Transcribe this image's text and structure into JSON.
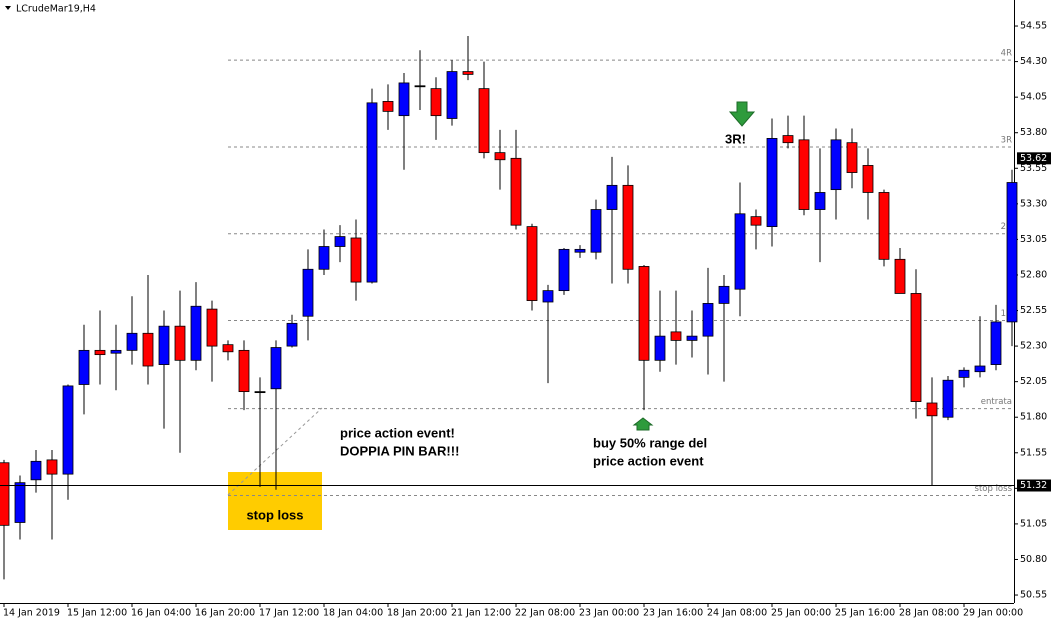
{
  "chart_data": {
    "type": "candlestick",
    "title": "LCrudeMar19,H4",
    "categories": [
      "14 Jan 2019",
      null,
      null,
      null,
      "15 Jan 12:00",
      null,
      null,
      null,
      "16 Jan 04:00",
      null,
      null,
      null,
      "16 Jan 20:00",
      null,
      null,
      null,
      "17 Jan 12:00",
      null,
      null,
      null,
      "18 Jan 04:00",
      null,
      null,
      null,
      "18 Jan 20:00",
      null,
      null,
      null,
      "21 Jan 12:00",
      null,
      null,
      null,
      "22 Jan 08:00",
      null,
      null,
      null,
      "23 Jan 00:00",
      null,
      null,
      null,
      "23 Jan 16:00",
      null,
      null,
      null,
      "24 Jan 08:00",
      null,
      null,
      null,
      "25 Jan 00:00",
      null,
      null,
      null,
      "25 Jan 16:00",
      null,
      null,
      null,
      "28 Jan 08:00",
      null,
      null,
      null,
      "29 Jan 00:00",
      null,
      null,
      null
    ],
    "open": [
      51.48,
      51.06,
      51.36,
      51.5,
      51.4,
      52.03,
      52.27,
      52.25,
      52.27,
      52.39,
      52.17,
      52.44,
      52.2,
      52.56,
      52.31,
      52.27,
      51.98,
      52.0,
      52.3,
      52.51,
      52.84,
      53.0,
      53.06,
      52.75,
      54.02,
      53.92,
      54.13,
      54.11,
      53.9,
      54.23,
      54.11,
      53.66,
      53.62,
      53.14,
      52.61,
      52.69,
      52.96,
      52.96,
      53.26,
      53.43,
      52.86,
      52.2,
      52.4,
      52.34,
      52.37,
      52.6,
      52.7,
      53.21,
      53.14,
      53.78,
      53.75,
      53.26,
      53.4,
      53.73,
      53.57,
      53.38,
      52.91,
      52.67,
      51.9,
      51.8,
      52.08,
      52.12,
      52.17,
      52.47
    ],
    "high": [
      51.5,
      51.39,
      51.57,
      51.57,
      52.03,
      52.45,
      52.55,
      52.45,
      52.65,
      52.8,
      52.55,
      52.69,
      52.75,
      52.62,
      52.34,
      52.34,
      52.08,
      52.34,
      52.52,
      52.98,
      53.12,
      53.15,
      53.19,
      54.11,
      54.14,
      54.22,
      54.38,
      54.19,
      54.31,
      54.48,
      54.3,
      53.82,
      53.82,
      53.16,
      52.73,
      52.99,
      53.01,
      53.33,
      53.63,
      53.57,
      52.87,
      52.69,
      52.69,
      52.55,
      52.85,
      52.8,
      53.45,
      53.26,
      53.9,
      53.92,
      53.92,
      53.69,
      53.83,
      53.83,
      53.69,
      53.4,
      52.99,
      52.84,
      52.08,
      52.09,
      52.15,
      52.51,
      52.59,
      53.54
    ],
    "low": [
      50.66,
      50.94,
      51.27,
      50.94,
      51.22,
      51.82,
      52.03,
      51.99,
      52.17,
      52.03,
      51.72,
      51.55,
      52.13,
      52.05,
      52.2,
      51.85,
      51.31,
      51.29,
      52.29,
      52.34,
      52.8,
      52.89,
      52.62,
      52.74,
      53.82,
      53.54,
      53.96,
      53.75,
      53.85,
      54.17,
      53.62,
      53.4,
      53.12,
      52.55,
      52.04,
      52.66,
      52.92,
      52.91,
      52.74,
      52.74,
      51.85,
      52.12,
      52.17,
      52.22,
      52.1,
      52.05,
      52.51,
      52.98,
      53.0,
      53.69,
      53.22,
      52.89,
      53.19,
      53.41,
      53.19,
      52.86,
      52.67,
      51.79,
      51.32,
      51.78,
      52.01,
      52.08,
      52.13,
      52.3
    ],
    "close": [
      51.04,
      51.34,
      51.49,
      51.4,
      52.02,
      52.27,
      52.24,
      52.27,
      52.39,
      52.16,
      52.44,
      52.2,
      52.58,
      52.3,
      52.26,
      51.98,
      51.98,
      52.29,
      52.46,
      52.84,
      53.0,
      53.07,
      52.75,
      54.01,
      53.95,
      54.15,
      54.13,
      53.92,
      54.23,
      54.21,
      53.66,
      53.61,
      53.15,
      52.62,
      52.69,
      52.98,
      52.98,
      53.26,
      53.43,
      52.84,
      52.2,
      52.37,
      52.34,
      52.37,
      52.6,
      52.72,
      53.23,
      53.15,
      53.76,
      53.73,
      53.26,
      53.38,
      53.75,
      53.52,
      53.38,
      52.91,
      52.67,
      51.91,
      51.81,
      52.06,
      52.13,
      52.16,
      52.47,
      53.45
    ],
    "up_color": "#0000ff",
    "down_color": "#ff0000",
    "ylim": [
      50.494,
      54.733
    ],
    "yticks": [
      54.55,
      {
        "value": 54.3,
        "label": "54.30"
      },
      {
        "value": 54.05,
        "label": "54.05"
      },
      {
        "value": 53.8,
        "label": "53.80"
      },
      53.55,
      {
        "value": 53.3,
        "label": "53.30"
      },
      {
        "value": 53.05,
        "label": "53.05"
      },
      {
        "value": 52.8,
        "label": "52.80"
      },
      52.55,
      {
        "value": 52.3,
        "label": "52.30"
      },
      {
        "value": 52.05,
        "label": "52.05"
      },
      {
        "value": 51.8,
        "label": "51.80"
      },
      51.55,
      {
        "value": 51.3,
        "label": "51.30"
      },
      {
        "value": 51.05,
        "label": "51.05"
      },
      {
        "value": 50.8,
        "label": "50.80"
      },
      50.55
    ],
    "levels": [
      {
        "label": "4R",
        "value": 54.31
      },
      {
        "label": "3R",
        "value": 53.7
      },
      {
        "label": "2R",
        "value": 53.09
      },
      {
        "label": "1R",
        "value": 52.48
      },
      {
        "label": "entrata",
        "value": 51.86
      },
      {
        "label": "stop loss",
        "value": 51.25
      }
    ],
    "stop_line": 51.32,
    "last_price": 53.62,
    "annotations": {
      "stop_box": "stop loss",
      "event": [
        "price action event!",
        "DOPPIA PIN BAR!!!"
      ],
      "buy": [
        "buy 50% range del",
        "price action event"
      ],
      "target": "3R!"
    }
  }
}
